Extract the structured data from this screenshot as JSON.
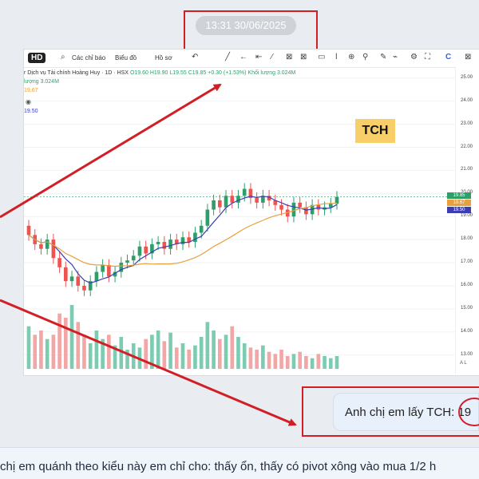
{
  "timestamp": "13:31 30/06/2025",
  "toolbar": {
    "hd": "HD",
    "indicators": "Các chỉ báo",
    "chart_type": "Biểu đồ",
    "template": "Hồ sơ"
  },
  "legend": {
    "name": "r Dịch vụ Tài chính Hoàng Huy · 1D · HSX",
    "ohlc": "O19.60  H19.90  L19.55  C19.85  +0.30 (+1.53%)  Khối lượng 3.024M",
    "volume_line": "lượng  3.024M",
    "ma_a": "19.67",
    "ma_b": "19.50"
  },
  "ticker_label": "TCH",
  "price_tags": [
    "19.85",
    "19.67",
    "19.50"
  ],
  "axis_buttons": "A  L",
  "chat_message": "Anh chị em lấy TCH: 19",
  "bottom_text": "chị em quánh theo kiểu này em chỉ cho: thấy ổn, thấy có pivot xông vào mua 1/2 h",
  "colors": {
    "up": "#2e9e6b",
    "down": "#ef5350",
    "ma_fast": "#3b3db0",
    "ma_slow": "#e8a03c",
    "vol_up": "#7dcbb1",
    "vol_down": "#f3a6a6",
    "annotation": "#d21f26",
    "label_bg": "#f8ce68"
  },
  "chart_data": {
    "type": "candlestick",
    "y_axis_ticks": [
      "25.00",
      "24.00",
      "23.00",
      "22.00",
      "21.00",
      "20.00",
      "19.00",
      "18.00",
      "17.00",
      "16.00",
      "15.00",
      "14.00",
      "13.00"
    ],
    "ylim": [
      12.4,
      25.2
    ],
    "close": [
      18.2,
      17.8,
      17.6,
      18.0,
      17.2,
      16.8,
      16.2,
      16.4,
      16.0,
      15.8,
      16.2,
      16.6,
      16.9,
      16.4,
      16.6,
      17.0,
      17.1,
      17.3,
      17.7,
      17.4,
      17.8,
      17.9,
      17.6,
      18.0,
      17.8,
      18.1,
      17.9,
      18.3,
      18.6,
      19.3,
      19.7,
      19.4,
      19.9,
      19.6,
      19.9,
      20.2,
      19.8,
      19.6,
      19.9,
      19.7,
      19.5,
      19.3,
      19.0,
      19.6,
      19.4,
      19.1,
      19.5,
      19.3,
      19.4,
      19.55,
      19.85
    ],
    "volume": [
      2.0,
      1.6,
      1.8,
      1.4,
      1.6,
      2.6,
      2.4,
      3.0,
      2.2,
      1.6,
      1.2,
      1.8,
      1.4,
      1.6,
      1.1,
      1.5,
      0.9,
      1.2,
      1.0,
      1.4,
      1.6,
      1.8,
      1.3,
      1.7,
      1.0,
      1.2,
      0.9,
      1.1,
      1.5,
      2.2,
      1.8,
      1.4,
      1.6,
      2.0,
      1.5,
      1.2,
      1.0,
      0.9,
      1.1,
      0.8,
      0.7,
      0.9,
      0.6,
      0.7,
      0.8,
      0.6,
      0.5,
      0.7,
      0.6,
      0.5,
      0.6
    ]
  }
}
